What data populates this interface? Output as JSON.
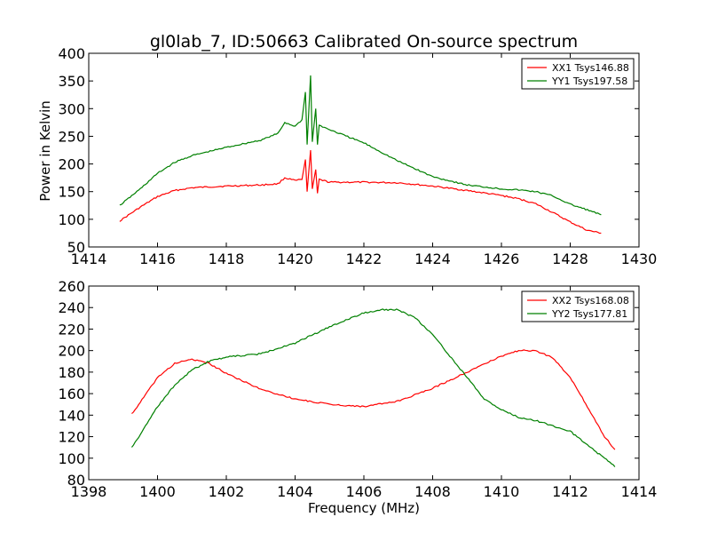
{
  "chart_data": [
    {
      "type": "line",
      "title": "gl0lab_7, ID:50663 Calibrated On-source spectrum",
      "xlabel": "",
      "ylabel": "Power in Kelvin",
      "xlim": [
        1414,
        1430
      ],
      "ylim": [
        50,
        400
      ],
      "xticks": [
        1414,
        1416,
        1418,
        1420,
        1422,
        1424,
        1426,
        1428,
        1430
      ],
      "yticks": [
        50,
        100,
        150,
        200,
        250,
        300,
        350,
        400
      ],
      "legend": "top-right",
      "series": [
        {
          "name": "XX1 Tsys146.88",
          "color": "#ff0000",
          "x": [
            1414.9,
            1415.5,
            1416,
            1416.5,
            1417,
            1418,
            1419,
            1419.5,
            1419.7,
            1420,
            1420.2,
            1420.3,
            1420.35,
            1420.45,
            1420.5,
            1420.6,
            1420.65,
            1420.7,
            1421,
            1422,
            1423,
            1424,
            1425,
            1426,
            1426.5,
            1427,
            1427.5,
            1428,
            1428.5,
            1428.9
          ],
          "y": [
            97,
            122,
            141,
            152,
            157,
            160,
            162,
            164,
            175,
            170,
            172,
            208,
            150,
            225,
            155,
            190,
            147,
            172,
            167,
            167,
            166,
            160,
            152,
            143,
            137,
            128,
            112,
            95,
            80,
            75
          ]
        },
        {
          "name": "YY1 Tsys197.58",
          "color": "#008000",
          "x": [
            1414.9,
            1415.5,
            1416,
            1416.5,
            1417,
            1418,
            1419,
            1419.5,
            1419.7,
            1420,
            1420.2,
            1420.3,
            1420.35,
            1420.45,
            1420.5,
            1420.6,
            1420.65,
            1420.7,
            1421,
            1422,
            1423,
            1424,
            1425,
            1426,
            1426.5,
            1427,
            1427.5,
            1428,
            1428.5,
            1428.9
          ],
          "y": [
            125,
            155,
            183,
            203,
            215,
            230,
            243,
            255,
            275,
            268,
            280,
            330,
            235,
            360,
            240,
            300,
            235,
            270,
            262,
            238,
            205,
            177,
            162,
            155,
            153,
            150,
            142,
            127,
            117,
            108
          ]
        }
      ]
    },
    {
      "type": "line",
      "title": "",
      "xlabel": "Frequency (MHz)",
      "ylabel": "",
      "xlim": [
        1398,
        1414
      ],
      "ylim": [
        80,
        260
      ],
      "xticks": [
        1398,
        1400,
        1402,
        1404,
        1406,
        1408,
        1410,
        1412,
        1414
      ],
      "yticks": [
        80,
        100,
        120,
        140,
        160,
        180,
        200,
        220,
        240,
        260
      ],
      "legend": "top-right",
      "series": [
        {
          "name": "XX2 Tsys168.08",
          "color": "#ff0000",
          "x": [
            1399.25,
            1399.5,
            1400,
            1400.5,
            1401,
            1401.5,
            1402,
            1403,
            1404,
            1405,
            1406,
            1407,
            1408,
            1409,
            1410,
            1410.5,
            1411,
            1411.5,
            1412,
            1412.5,
            1413,
            1413.3
          ],
          "y": [
            141,
            152,
            175,
            188,
            192,
            188,
            179,
            164,
            155,
            150,
            148,
            153,
            165,
            180,
            195,
            200,
            200,
            193,
            175,
            148,
            120,
            108
          ]
        },
        {
          "name": "YY2 Tsys177.81",
          "color": "#008000",
          "x": [
            1399.25,
            1399.5,
            1400,
            1400.5,
            1401,
            1401.5,
            1402,
            1403,
            1404,
            1405,
            1406,
            1406.5,
            1407,
            1407.5,
            1408,
            1408.5,
            1409,
            1409.5,
            1410,
            1410.5,
            1411,
            1411.5,
            1412,
            1412.5,
            1413,
            1413.3
          ],
          "y": [
            110,
            122,
            148,
            168,
            182,
            190,
            194,
            197,
            207,
            222,
            235,
            238,
            238,
            230,
            215,
            195,
            175,
            155,
            145,
            138,
            135,
            130,
            125,
            112,
            100,
            92
          ]
        }
      ]
    }
  ]
}
